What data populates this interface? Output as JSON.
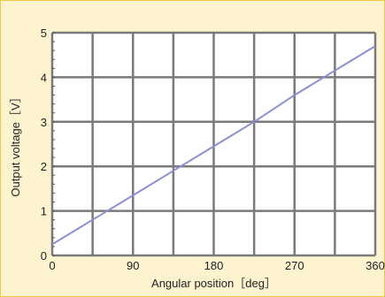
{
  "chart_data": {
    "type": "line",
    "title": "",
    "xlabel": "Angular position［deg］",
    "ylabel": "Output voltage［V］",
    "xlim": [
      0,
      360
    ],
    "ylim": [
      0,
      5
    ],
    "x_ticks": [
      "0",
      "90",
      "180",
      "270",
      "360"
    ],
    "y_ticks": [
      "0",
      "1",
      "2",
      "3",
      "4",
      "5"
    ],
    "grid": true,
    "series": [
      {
        "x": [
          0,
          45,
          90,
          135,
          180,
          225,
          270,
          315,
          360
        ],
        "y": [
          0.25,
          0.8,
          1.35,
          1.9,
          2.45,
          3.0,
          3.6,
          4.15,
          4.7
        ]
      }
    ],
    "colors": {
      "background": "#fdf3cf",
      "frame": "#efc84a",
      "plot_area": "#ffffff",
      "grid": "#7a7a7a",
      "line": "#8a8fd8"
    }
  }
}
